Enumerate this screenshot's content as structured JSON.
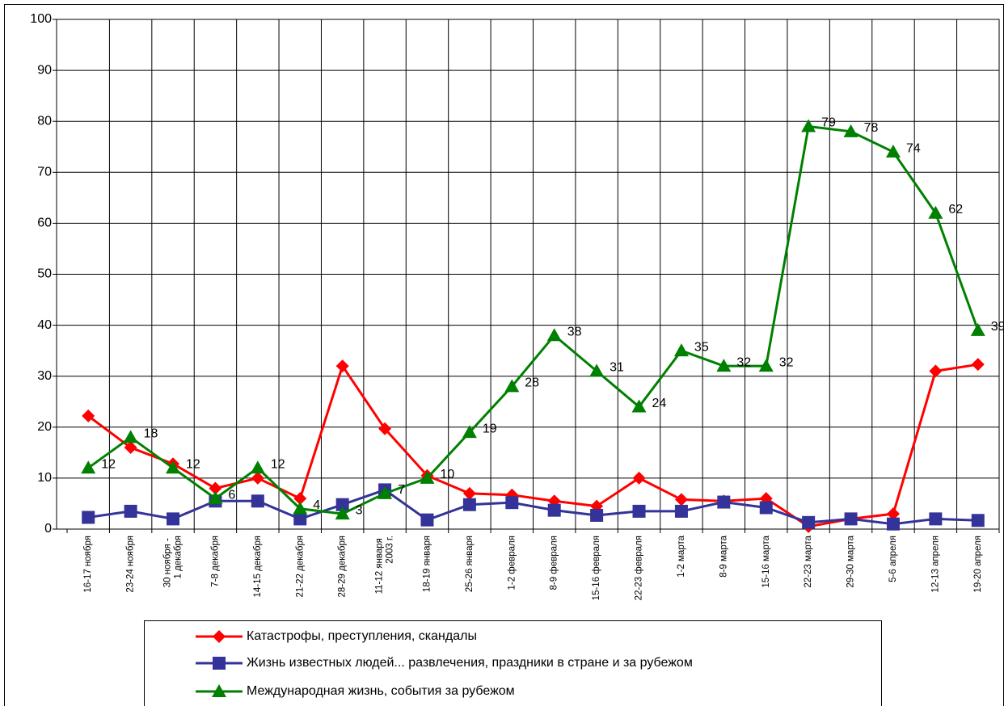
{
  "chart_data": {
    "type": "line",
    "categories": [
      "16-17 ноября",
      "23-24 ноября",
      "30 ноября -\n1 декабря",
      "7-8 декабря",
      "14-15 декабря",
      "21-22 декабря",
      "28-29 декабря",
      "11-12 января\n2003 г.",
      "18-19 января",
      "25-26 января",
      "1-2 февраля",
      "8-9 февраля",
      "15-16 февраля",
      "22-23 февраля",
      "1-2 марта",
      "8-9 марта",
      "15-16 марта",
      "22-23 марта",
      "29-30 марта",
      "5-6 апреля",
      "12-13 апреля",
      "19-20 апреля"
    ],
    "series": [
      {
        "name": "Катастрофы, преступления, скандалы",
        "color": "#ff0000",
        "marker": "diamond",
        "values": [
          22.2,
          16,
          12.8,
          8,
          10,
          6,
          32,
          19.7,
          10.5,
          7,
          6.7,
          5.5,
          4.5,
          10,
          5.8,
          5.5,
          6,
          0.5,
          2,
          3,
          31,
          32.3
        ]
      },
      {
        "name": "Жизнь известных людей... развлечения, праздники в стране и за рубежом",
        "color": "#333399",
        "marker": "square",
        "values": [
          2.3,
          3.5,
          2,
          5.5,
          5.5,
          2,
          4.8,
          7.7,
          1.8,
          4.8,
          5.2,
          3.7,
          2.7,
          3.5,
          3.5,
          5.3,
          4.2,
          1.3,
          2,
          1,
          2,
          1.7
        ]
      },
      {
        "name": "Международная жизнь, события за рубежом",
        "color": "#008000",
        "marker": "triangle",
        "show_labels": true,
        "values": [
          12,
          18,
          12,
          6,
          12,
          4,
          3,
          7,
          10,
          19,
          28,
          38,
          31,
          24,
          35,
          32,
          32,
          79,
          78,
          74,
          62,
          39
        ]
      }
    ],
    "ylim": [
      0,
      100
    ],
    "yticks": [
      0,
      10,
      20,
      30,
      40,
      50,
      60,
      70,
      80,
      90,
      100
    ],
    "grid": true
  }
}
